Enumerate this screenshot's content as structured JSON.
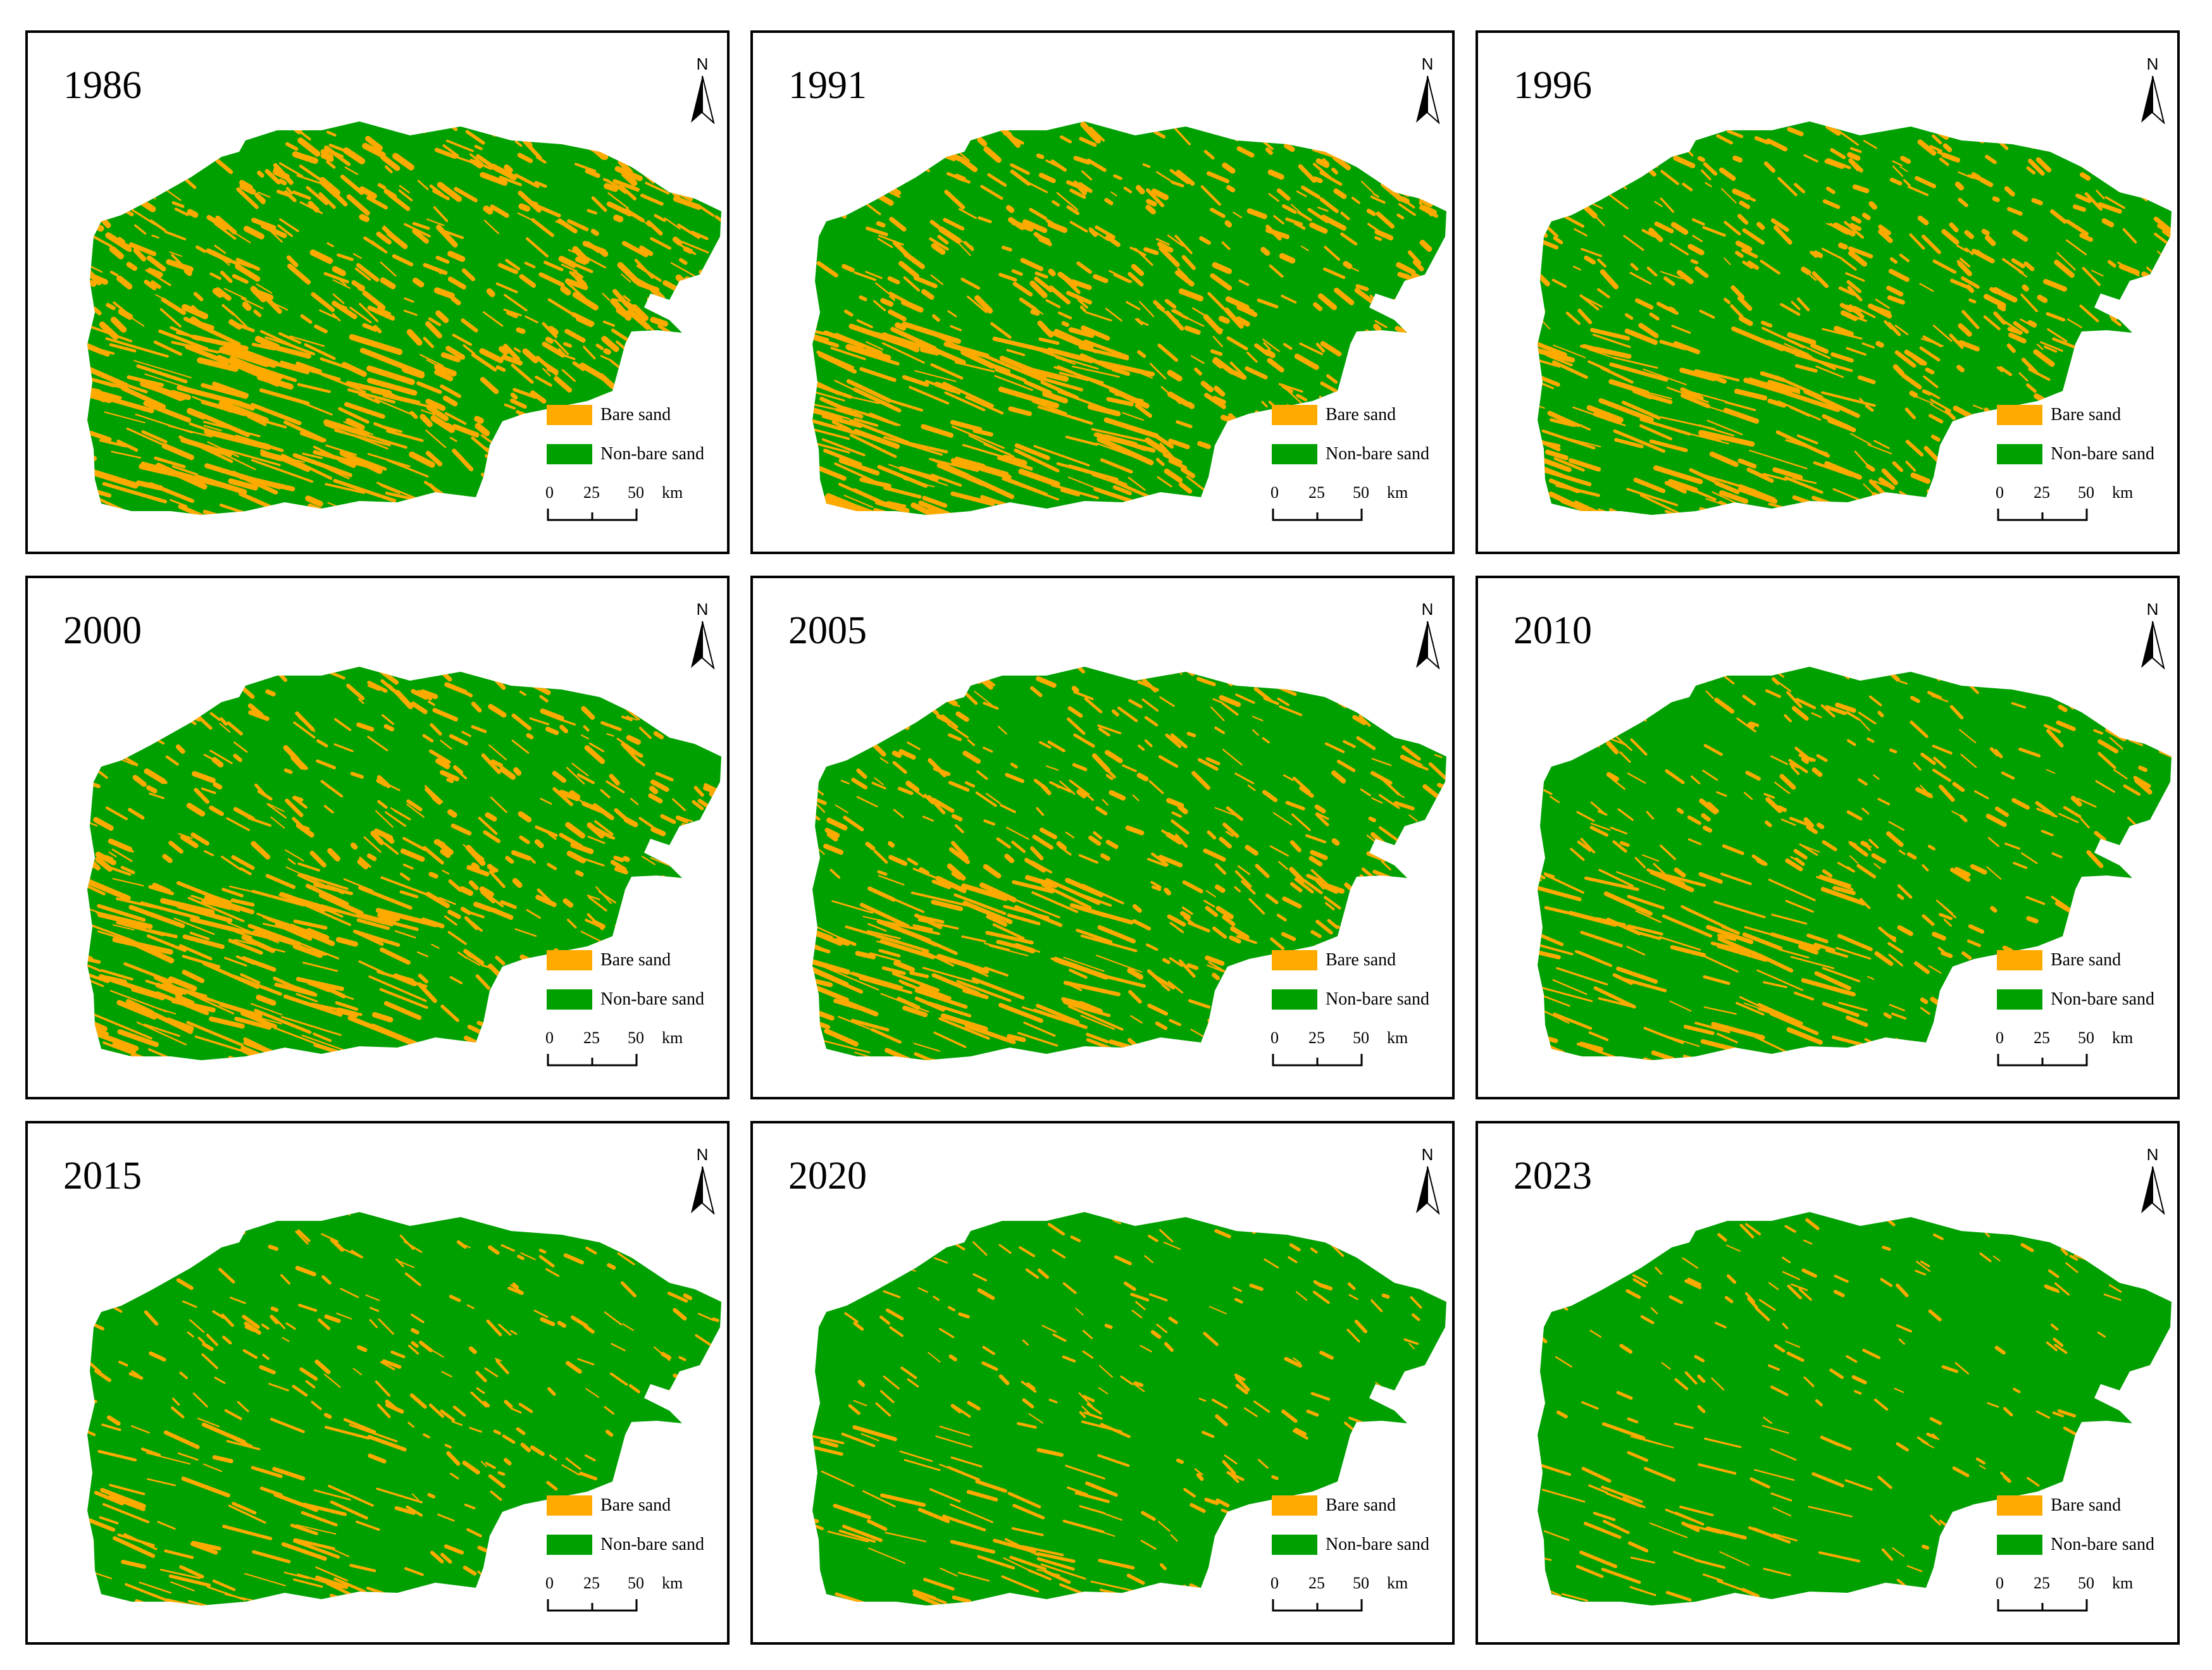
{
  "panels": [
    {
      "year": "1986",
      "bare_sand_level": 0.5
    },
    {
      "year": "1991",
      "bare_sand_level": 0.42
    },
    {
      "year": "1996",
      "bare_sand_level": 0.36
    },
    {
      "year": "2000",
      "bare_sand_level": 0.4
    },
    {
      "year": "2005",
      "bare_sand_level": 0.33
    },
    {
      "year": "2010",
      "bare_sand_level": 0.26
    },
    {
      "year": "2015",
      "bare_sand_level": 0.18
    },
    {
      "year": "2020",
      "bare_sand_level": 0.12
    },
    {
      "year": "2023",
      "bare_sand_level": 0.09
    }
  ],
  "north_arrow": {
    "label": "N",
    "icon": "north-arrow-icon"
  },
  "legend": [
    {
      "label": "Bare sand",
      "color": "#FFAA00"
    },
    {
      "label": "Non-bare sand",
      "color": "#00A000"
    }
  ],
  "scale_bar": {
    "ticks": [
      "0",
      "25",
      "50"
    ],
    "unit": "km"
  },
  "colors": {
    "bare_sand": "#FFAA00",
    "non_bare_sand": "#00A000",
    "border": "#000000"
  }
}
